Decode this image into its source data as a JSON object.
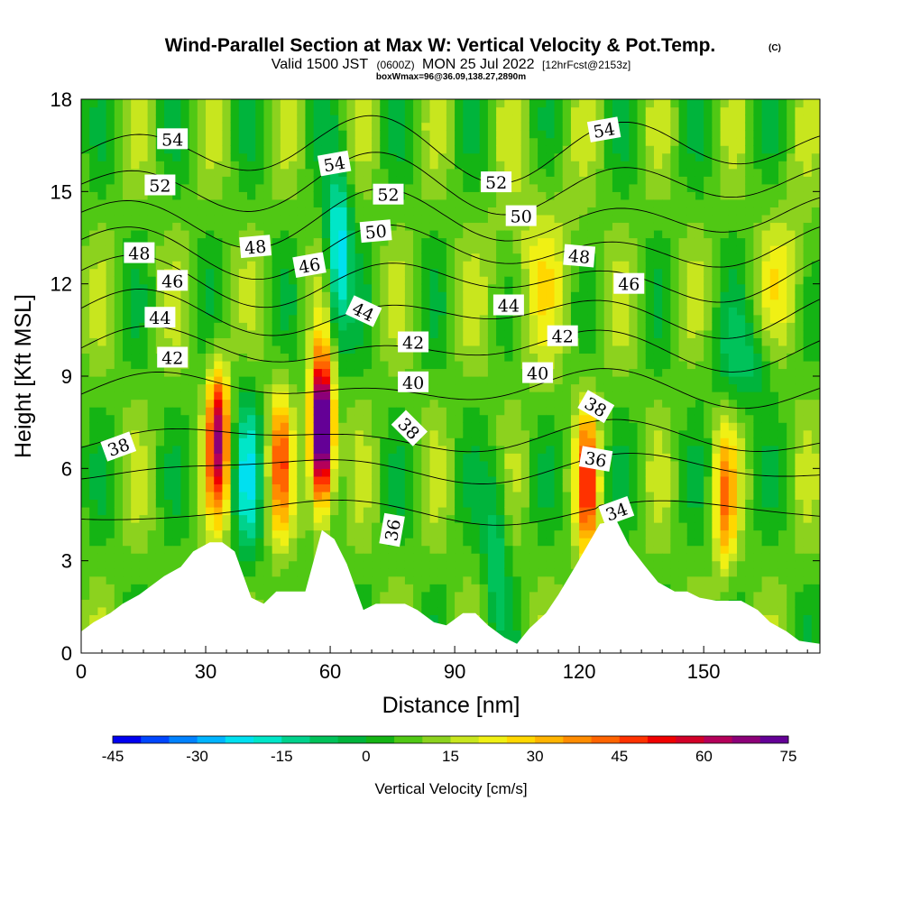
{
  "chart_data": {
    "type": "heatmap",
    "title": "Wind-Parallel Section at Max W: Vertical Velocity & Pot.Temp.",
    "title_suffix": "(C)",
    "subtitle": {
      "valid": "Valid 1500 JST",
      "utc": "(0600Z)",
      "date": "MON 25 Jul 2022",
      "fcst": "[12hrFcst@2153z]"
    },
    "subtitle2": "boxWmax=96@36.09,138.27,2890m",
    "xlabel": "Distance [nm]",
    "ylabel": "Height [Kft MSL]",
    "xlim": [
      0,
      178
    ],
    "ylim": [
      0,
      18
    ],
    "x_ticks": [
      0,
      30,
      60,
      90,
      120,
      150
    ],
    "y_ticks": [
      0,
      3,
      6,
      9,
      12,
      15,
      18
    ],
    "colorbar": {
      "label": "Vertical Velocity [cm/s]",
      "min": -45,
      "step": 5,
      "tick_values": [
        -45,
        -30,
        -15,
        0,
        15,
        30,
        45,
        60,
        75
      ],
      "colors": [
        "#0000f0",
        "#0046ff",
        "#0082ff",
        "#00b4ff",
        "#00e0f0",
        "#00e6c8",
        "#00d28c",
        "#00c25a",
        "#00b43c",
        "#14b414",
        "#50c814",
        "#8cd21e",
        "#c8e61e",
        "#f0f014",
        "#ffd700",
        "#ffb400",
        "#ff8c00",
        "#ff6400",
        "#ff3200",
        "#f00000",
        "#d20028",
        "#b4005a",
        "#8c0078",
        "#640096"
      ]
    },
    "w_maxima": [
      {
        "x": 33,
        "y": 7.0,
        "value": 60
      },
      {
        "x": 48,
        "y": 6.2,
        "value": 40
      },
      {
        "x": 58,
        "y": 7.2,
        "value": 96
      },
      {
        "x": 122,
        "y": 5.5,
        "value": 45
      },
      {
        "x": 155,
        "y": 5.0,
        "value": 35
      }
    ],
    "w_minima": [
      {
        "x": 40,
        "y": 5.8,
        "value": -15
      },
      {
        "x": 62,
        "y": 13.0,
        "value": -25
      },
      {
        "x": 100,
        "y": 3.5,
        "value": -10
      }
    ],
    "terrain": {
      "x": [
        0,
        3,
        7,
        10,
        14,
        17,
        20,
        24,
        27,
        31,
        34,
        37,
        41,
        44,
        47,
        51,
        54,
        58,
        61,
        64,
        68,
        71,
        75,
        78,
        81,
        85,
        88,
        92,
        95,
        98,
        102,
        105,
        108,
        112,
        115,
        119,
        122,
        125,
        129,
        132,
        136,
        139,
        143,
        146,
        149,
        153,
        156,
        159,
        163,
        166,
        170,
        173,
        178
      ],
      "y": [
        0.7,
        1.0,
        1.3,
        1.6,
        1.9,
        2.2,
        2.5,
        2.8,
        3.3,
        3.6,
        3.6,
        3.3,
        1.8,
        1.6,
        2.0,
        2.0,
        2.0,
        4.0,
        3.7,
        2.9,
        1.4,
        1.6,
        1.6,
        1.6,
        1.4,
        1.0,
        0.9,
        1.3,
        1.3,
        0.9,
        0.5,
        0.3,
        0.8,
        1.3,
        1.9,
        2.8,
        3.5,
        4.2,
        4.3,
        3.5,
        2.8,
        2.3,
        2.0,
        2.0,
        1.8,
        1.7,
        1.7,
        1.7,
        1.4,
        1.0,
        0.7,
        0.4,
        0.3
      ]
    },
    "theta_contours": [
      {
        "label": "34",
        "level": 34,
        "base": 4.6
      },
      {
        "label": "36",
        "level": 36,
        "base": 6.0
      },
      {
        "label": "38",
        "level": 38,
        "base": 7.0
      },
      {
        "label": "40",
        "level": 40,
        "base": 8.6
      },
      {
        "label": "42",
        "level": 42,
        "base": 9.9
      },
      {
        "label": "44",
        "level": 44,
        "base": 11.0
      },
      {
        "label": "46",
        "level": 46,
        "base": 12.1
      },
      {
        "label": "48",
        "level": 48,
        "base": 13.1
      },
      {
        "label": "50",
        "level": 50,
        "base": 14.1
      },
      {
        "label": "52",
        "level": 52,
        "base": 15.2
      },
      {
        "label": "54",
        "level": 54,
        "base": 16.4
      }
    ],
    "contour_labels": [
      {
        "text": "54",
        "x": 22,
        "y": 16.7,
        "angle": 0
      },
      {
        "text": "52",
        "x": 19,
        "y": 15.2,
        "angle": 0
      },
      {
        "text": "48",
        "x": 14,
        "y": 13.0,
        "angle": 0
      },
      {
        "text": "46",
        "x": 22,
        "y": 12.1,
        "angle": 0
      },
      {
        "text": "44",
        "x": 19,
        "y": 10.9,
        "angle": 0
      },
      {
        "text": "42",
        "x": 22,
        "y": 9.6,
        "angle": 0
      },
      {
        "text": "38",
        "x": 9,
        "y": 6.7,
        "angle": -20
      },
      {
        "text": "48",
        "x": 42,
        "y": 13.2,
        "angle": -5
      },
      {
        "text": "46",
        "x": 55,
        "y": 12.6,
        "angle": -10
      },
      {
        "text": "54",
        "x": 61,
        "y": 15.9,
        "angle": -10
      },
      {
        "text": "52",
        "x": 74,
        "y": 14.9,
        "angle": 0
      },
      {
        "text": "50",
        "x": 71,
        "y": 13.7,
        "angle": -5
      },
      {
        "text": "44",
        "x": 68,
        "y": 11.1,
        "angle": 25
      },
      {
        "text": "42",
        "x": 80,
        "y": 10.1,
        "angle": 0
      },
      {
        "text": "40",
        "x": 80,
        "y": 8.8,
        "angle": 0
      },
      {
        "text": "38",
        "x": 79,
        "y": 7.3,
        "angle": 45
      },
      {
        "text": "36",
        "x": 75,
        "y": 4.0,
        "angle": -80
      },
      {
        "text": "52",
        "x": 100,
        "y": 15.3,
        "angle": 0
      },
      {
        "text": "50",
        "x": 106,
        "y": 14.2,
        "angle": 0
      },
      {
        "text": "44",
        "x": 103,
        "y": 11.3,
        "angle": 0
      },
      {
        "text": "42",
        "x": 116,
        "y": 10.3,
        "angle": 0
      },
      {
        "text": "40",
        "x": 110,
        "y": 9.1,
        "angle": 0
      },
      {
        "text": "48",
        "x": 120,
        "y": 12.9,
        "angle": 5
      },
      {
        "text": "46",
        "x": 132,
        "y": 12.0,
        "angle": 0
      },
      {
        "text": "54",
        "x": 126,
        "y": 17.0,
        "angle": -10
      },
      {
        "text": "38",
        "x": 124,
        "y": 8.0,
        "angle": 30
      },
      {
        "text": "36",
        "x": 124,
        "y": 6.3,
        "angle": 10
      },
      {
        "text": "34",
        "x": 129,
        "y": 4.6,
        "angle": -20
      }
    ]
  }
}
